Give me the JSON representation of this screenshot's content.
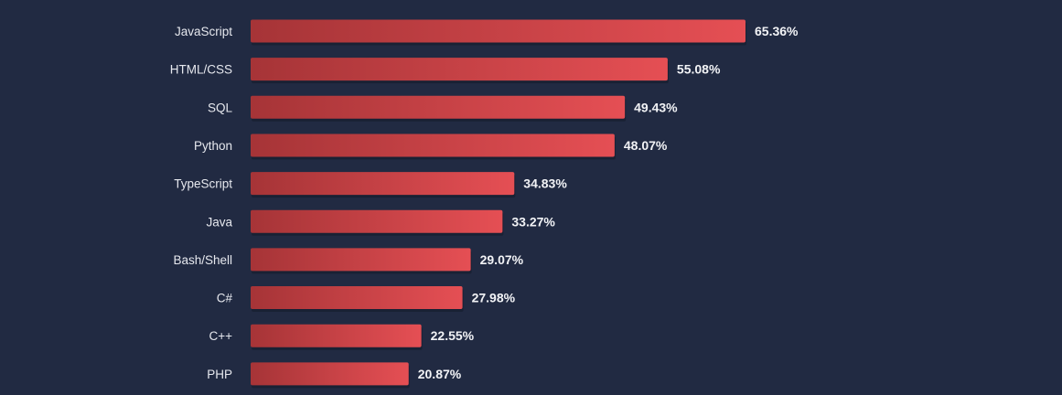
{
  "chart_data": {
    "type": "bar",
    "orientation": "horizontal",
    "categories": [
      "JavaScript",
      "HTML/CSS",
      "SQL",
      "Python",
      "TypeScript",
      "Java",
      "Bash/Shell",
      "C#",
      "C++",
      "PHP"
    ],
    "values": [
      65.36,
      55.08,
      49.43,
      48.07,
      34.83,
      33.27,
      29.07,
      27.98,
      22.55,
      20.87
    ],
    "value_labels": [
      "65.36%",
      "55.08%",
      "49.43%",
      "48.07%",
      "34.83%",
      "33.27%",
      "29.07%",
      "27.98%",
      "22.55%",
      "20.87%"
    ],
    "value_unit": "%",
    "title": "",
    "xlabel": "",
    "ylabel": "",
    "xlim": [
      0,
      65.36
    ],
    "grid": false,
    "legend": "none"
  },
  "colors": {
    "background": "#212a42",
    "bar_start": "#a63437",
    "bar_end": "#e54f54",
    "bar_shadow": "#14192a",
    "category_text": "#e6e8ee",
    "value_text": "#f2f3f6"
  }
}
